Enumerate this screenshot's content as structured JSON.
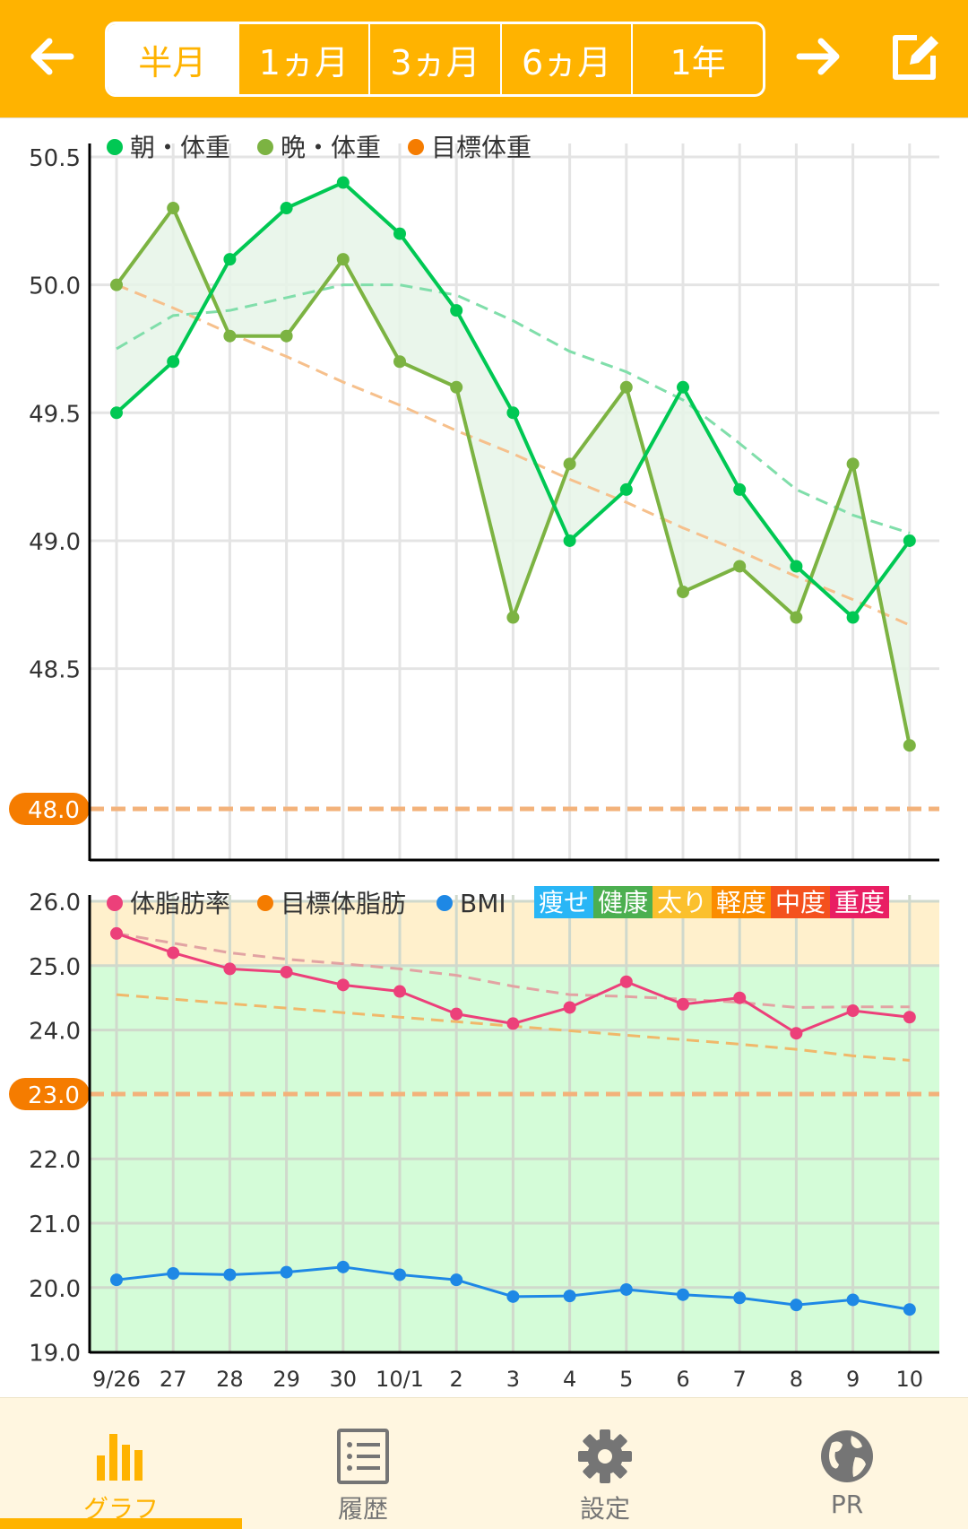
{
  "header": {
    "tabs": [
      {
        "label": "半月",
        "active": true
      },
      {
        "label": "1ヵ月",
        "active": false
      },
      {
        "label": "3ヵ月",
        "active": false
      },
      {
        "label": "6ヵ月",
        "active": false
      },
      {
        "label": "1年",
        "active": false
      }
    ],
    "icons": {
      "back": "arrow-left-icon",
      "forward": "arrow-right-icon",
      "edit": "edit-icon"
    },
    "accent": "#ffb300"
  },
  "weight_chart": {
    "legend": [
      {
        "label": "朝・体重",
        "color": "#00c853"
      },
      {
        "label": "晩・体重",
        "color": "#7cb342"
      },
      {
        "label": "目標体重",
        "color": "#f57c00"
      }
    ],
    "y_ticks": [
      "50.5",
      "50.0",
      "49.5",
      "49.0",
      "48.5"
    ],
    "goal_label": "48.0"
  },
  "fat_chart": {
    "legend": [
      {
        "label": "体脂肪率",
        "color": "#ec407a"
      },
      {
        "label": "目標体脂肪",
        "color": "#f57c00"
      },
      {
        "label": "BMI",
        "color": "#1e88e5"
      }
    ],
    "bmi_categories": [
      {
        "label": "痩せ",
        "color": "#29b6f6"
      },
      {
        "label": "健康",
        "color": "#4caf50"
      },
      {
        "label": "太り",
        "color": "#fbc02d"
      },
      {
        "label": "軽度",
        "color": "#fb8c00"
      },
      {
        "label": "中度",
        "color": "#f4511e"
      },
      {
        "label": "重度",
        "color": "#e91e63"
      }
    ],
    "y_ticks": [
      "26.0",
      "25.0",
      "24.0",
      "22.0",
      "21.0",
      "20.0",
      "19.0"
    ],
    "goal_label": "23.0"
  },
  "x_labels": [
    "9/26",
    "27",
    "28",
    "29",
    "30",
    "10/1",
    "2",
    "3",
    "4",
    "5",
    "6",
    "7",
    "8",
    "9",
    "10"
  ],
  "chart_data": [
    {
      "type": "line",
      "categories": [
        "9/26",
        "27",
        "28",
        "29",
        "30",
        "10/1",
        "2",
        "3",
        "4",
        "5",
        "6",
        "7",
        "8",
        "9",
        "10"
      ],
      "ylim": [
        47.8,
        50.6
      ],
      "series": [
        {
          "name": "朝・体重",
          "values": [
            49.5,
            49.7,
            50.1,
            50.3,
            50.4,
            50.2,
            49.9,
            49.5,
            49.0,
            49.2,
            49.6,
            49.2,
            48.9,
            48.7,
            49.0
          ]
        },
        {
          "name": "晩・体重",
          "values": [
            50.0,
            50.3,
            49.8,
            49.8,
            50.1,
            49.7,
            49.6,
            48.7,
            49.3,
            49.6,
            48.8,
            48.9,
            48.7,
            49.3,
            48.2
          ]
        },
        {
          "name": "目標体重",
          "values": [
            48.0,
            48.0,
            48.0,
            48.0,
            48.0,
            48.0,
            48.0,
            48.0,
            48.0,
            48.0,
            48.0,
            48.0,
            48.0,
            48.0,
            48.0
          ]
        }
      ],
      "trend_morning": [
        49.75,
        49.88,
        49.9,
        49.95,
        50.0,
        50.0,
        49.96,
        49.86,
        49.74,
        49.66,
        49.55,
        49.38,
        49.2,
        49.1,
        49.03
      ],
      "trend_weight": [
        50.0,
        49.91,
        49.81,
        49.72,
        49.62,
        49.53,
        49.43,
        49.34,
        49.24,
        49.15,
        49.05,
        48.96,
        48.86,
        48.77,
        48.67
      ]
    },
    {
      "type": "line",
      "categories": [
        "9/26",
        "27",
        "28",
        "29",
        "30",
        "10/1",
        "2",
        "3",
        "4",
        "5",
        "6",
        "7",
        "8",
        "9",
        "10"
      ],
      "ylim": [
        19.0,
        26.0
      ],
      "series": [
        {
          "name": "体脂肪率",
          "values": [
            25.5,
            25.2,
            24.95,
            24.9,
            24.7,
            24.6,
            24.25,
            24.1,
            24.35,
            24.75,
            24.4,
            24.5,
            23.95,
            24.3,
            24.2
          ]
        },
        {
          "name": "目標体脂肪",
          "values": [
            23.0,
            23.0,
            23.0,
            23.0,
            23.0,
            23.0,
            23.0,
            23.0,
            23.0,
            23.0,
            23.0,
            23.0,
            23.0,
            23.0,
            23.0
          ]
        },
        {
          "name": "BMI",
          "values": [
            20.12,
            20.22,
            20.2,
            20.24,
            20.32,
            20.2,
            20.12,
            19.86,
            19.87,
            19.97,
            19.89,
            19.84,
            19.73,
            19.81,
            19.66
          ]
        }
      ],
      "trend_fat": [
        25.5,
        25.35,
        25.2,
        25.1,
        25.03,
        24.95,
        24.85,
        24.68,
        24.55,
        24.52,
        24.48,
        24.43,
        24.35,
        24.36,
        24.36
      ],
      "trend_goal": [
        24.55,
        24.48,
        24.41,
        24.34,
        24.27,
        24.2,
        24.13,
        24.06,
        23.99,
        23.92,
        23.85,
        23.78,
        23.7,
        23.6,
        23.53
      ],
      "bands": [
        {
          "from": 25.0,
          "to": 26.0,
          "color": "#fff0cc"
        },
        {
          "from": 19.0,
          "to": 25.0,
          "color": "#d4fcd8"
        }
      ]
    }
  ],
  "bottom_nav": [
    {
      "label": "グラフ",
      "icon": "bar-chart-icon",
      "active": true
    },
    {
      "label": "履歴",
      "icon": "list-icon",
      "active": false
    },
    {
      "label": "設定",
      "icon": "gear-icon",
      "active": false
    },
    {
      "label": "PR",
      "icon": "globe-icon",
      "active": false
    }
  ]
}
